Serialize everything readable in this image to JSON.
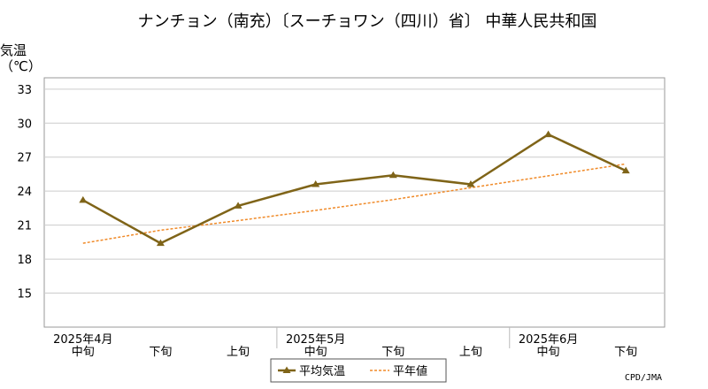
{
  "chart_data": {
    "type": "line",
    "title": "ナンチョン（南充）〔スーチョワン（四川）省〕 中華人民共和国",
    "ylabel_line1": "気温",
    "ylabel_line2": "（℃）",
    "ylim": [
      12,
      34
    ],
    "yticks": [
      15,
      18,
      21,
      24,
      27,
      30,
      33
    ],
    "grid": true,
    "legend_position": "bottom-center",
    "categories": [
      "中旬",
      "下旬",
      "上旬",
      "中旬",
      "下旬",
      "上旬",
      "中旬",
      "下旬"
    ],
    "months": [
      {
        "label": "2025年4月",
        "index": 0
      },
      {
        "label": "2025年5月",
        "index": 3
      },
      {
        "label": "2025年6月",
        "index": 6
      }
    ],
    "series": [
      {
        "name": "平均気温",
        "color": "#7f6418",
        "marker": "triangle",
        "values": [
          23.2,
          19.4,
          22.7,
          24.6,
          25.4,
          24.6,
          29.0,
          25.8
        ]
      },
      {
        "name": "平年値",
        "color": "#f08a28",
        "dash": true,
        "values": [
          19.4,
          20.55,
          21.4,
          22.3,
          23.25,
          24.3,
          25.35,
          26.4
        ]
      }
    ],
    "credit": "CPD/JMA"
  }
}
